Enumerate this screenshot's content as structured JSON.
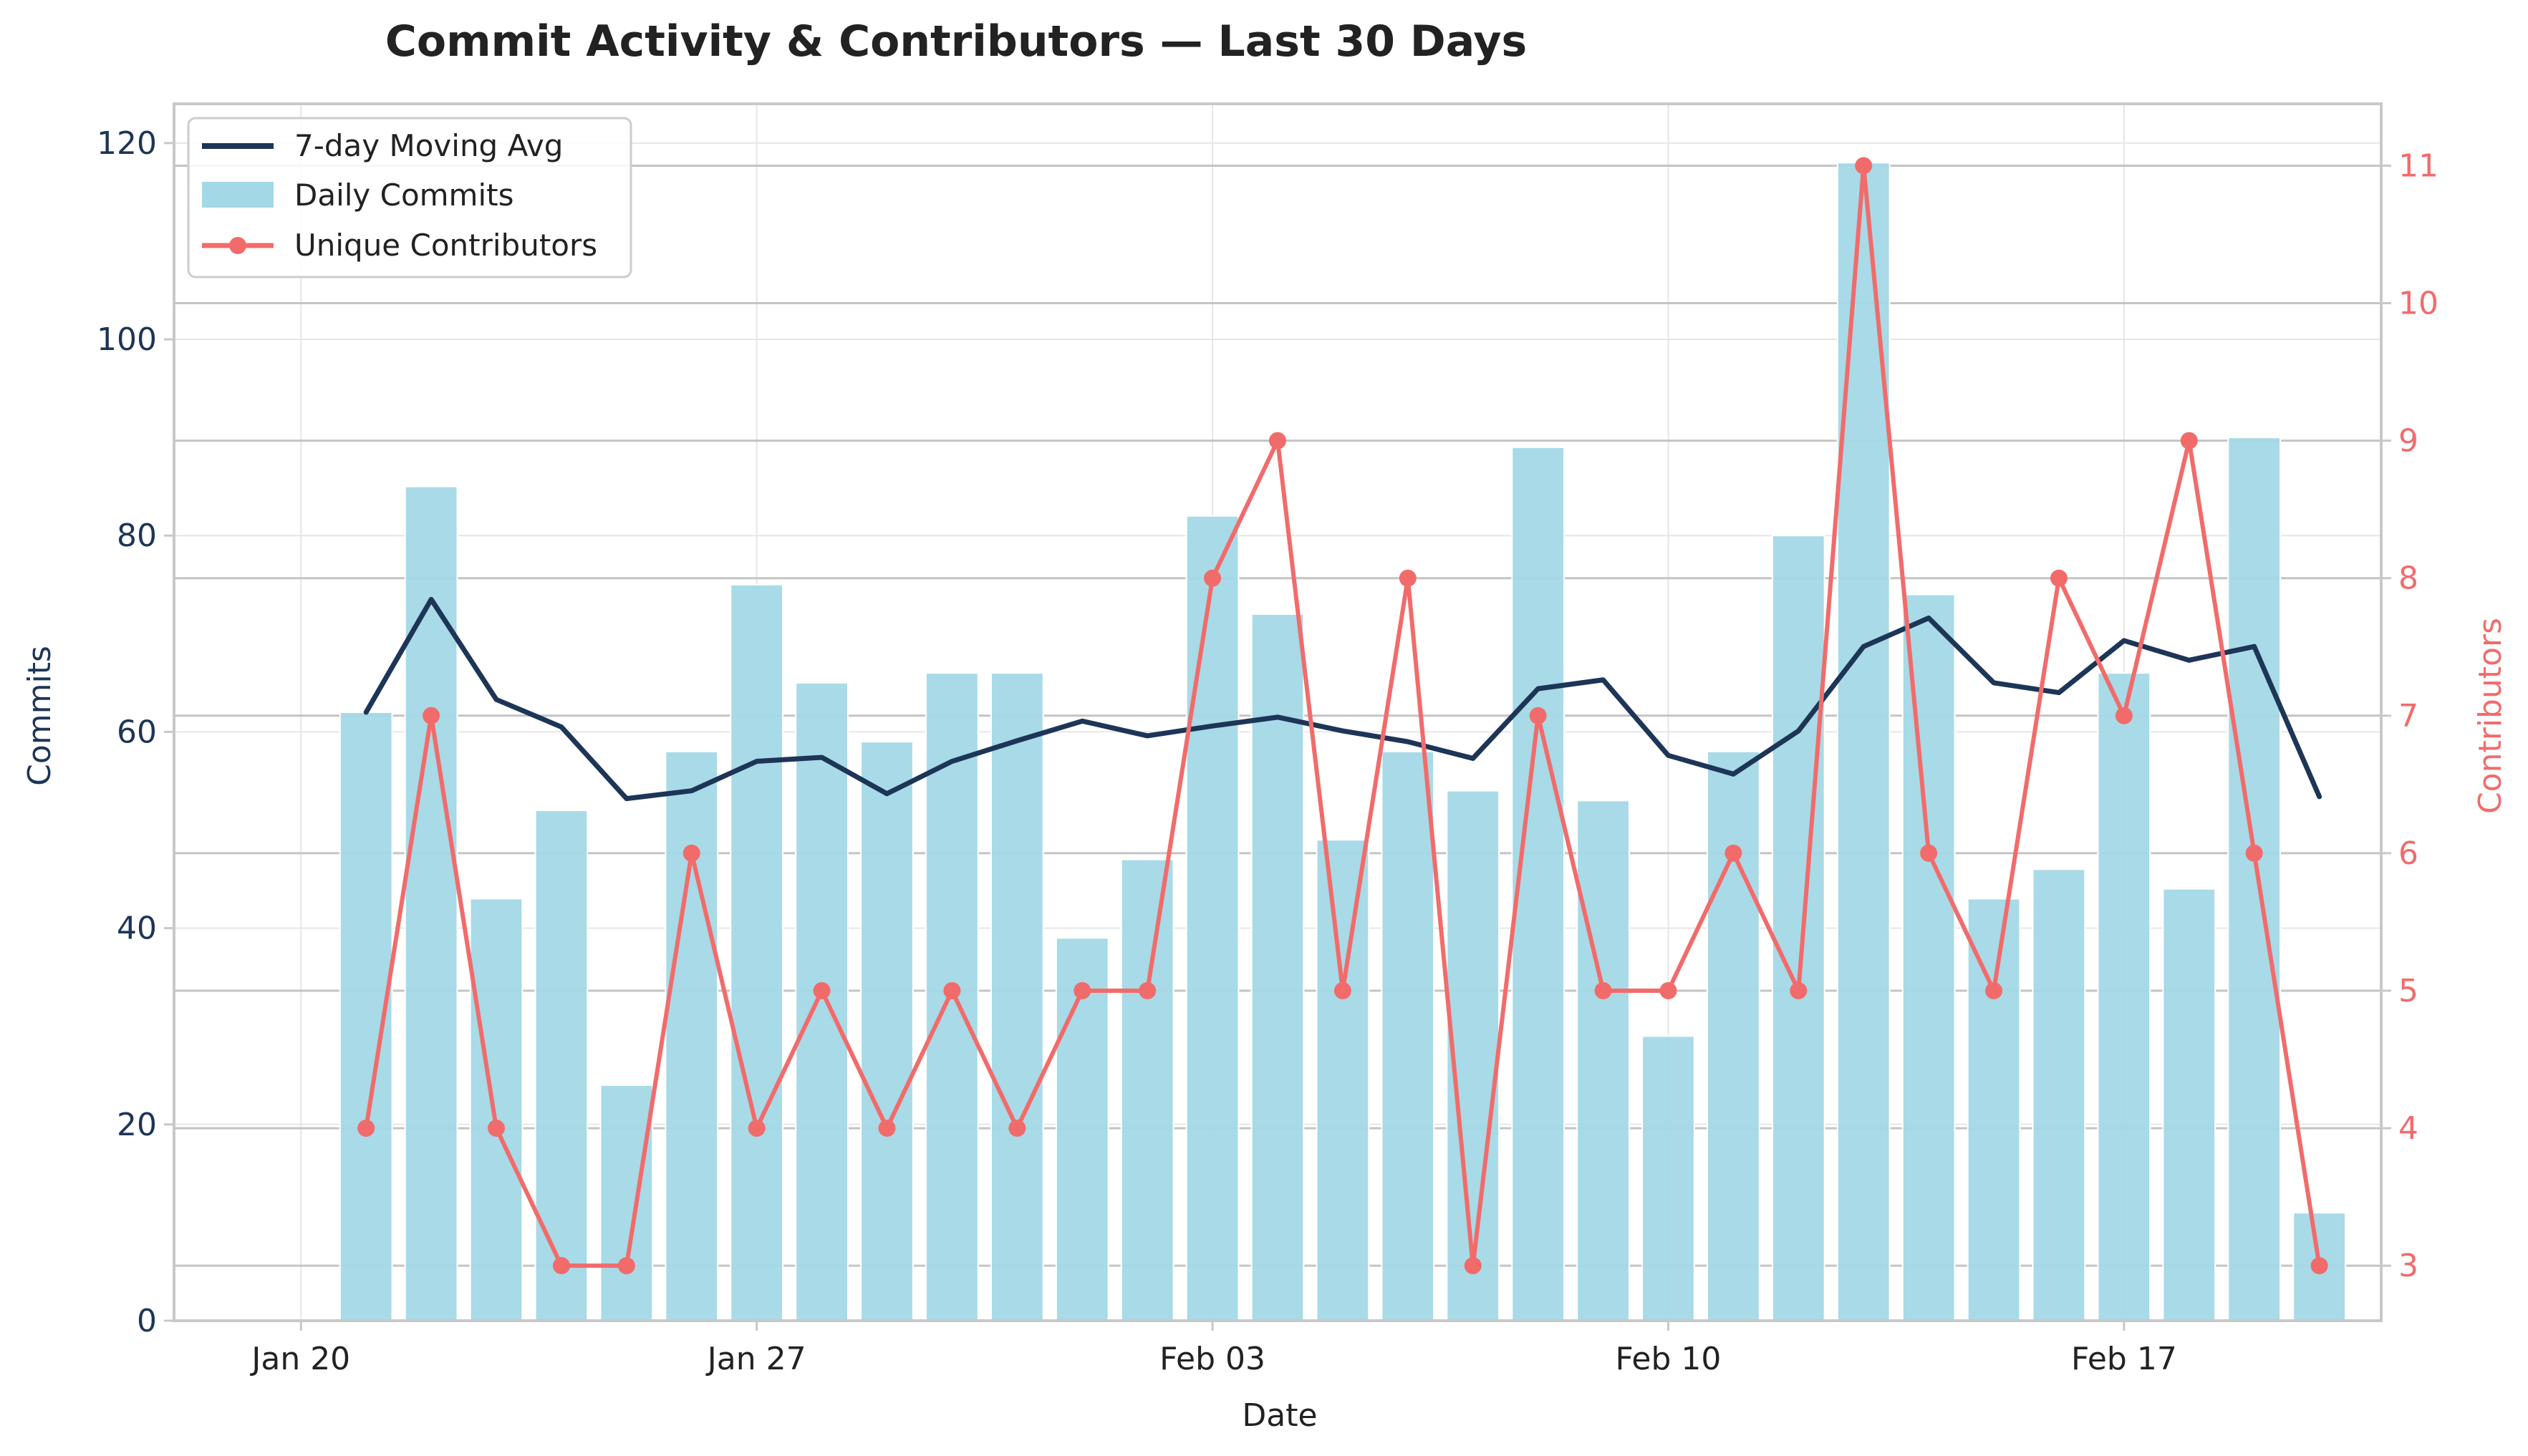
{
  "chart_data": {
    "type": "bar",
    "title": "Commit Activity & Contributors — Last 30 Days",
    "xlabel": "Date",
    "ylabel": "Commits",
    "y2label": "Contributors",
    "ylim": [
      0,
      124
    ],
    "y2lim": [
      2.6,
      11.45
    ],
    "yticks": [
      0,
      20,
      40,
      60,
      80,
      100,
      120
    ],
    "y2ticks": [
      3,
      4,
      5,
      6,
      7,
      8,
      9,
      10,
      11
    ],
    "x_day_range": [
      -1.95,
      31.95
    ],
    "xticks": [
      {
        "day": 0,
        "label": "Jan 20"
      },
      {
        "day": 7,
        "label": "Jan 27"
      },
      {
        "day": 14,
        "label": "Feb 03"
      },
      {
        "day": 21,
        "label": "Feb 10"
      },
      {
        "day": 28,
        "label": "Feb 17"
      }
    ],
    "days": [
      1,
      2,
      3,
      4,
      5,
      6,
      7,
      8,
      9,
      10,
      11,
      12,
      13,
      14,
      15,
      16,
      17,
      18,
      19,
      20,
      21,
      22,
      23,
      24,
      25,
      26,
      27,
      28,
      29,
      30,
      31
    ],
    "series": [
      {
        "name": "Daily Commits",
        "kind": "bar",
        "color": "#a3d8e6",
        "values": [
          62,
          85,
          43,
          52,
          24,
          58,
          75,
          65,
          59,
          66,
          66,
          39,
          47,
          82,
          72,
          49,
          58,
          54,
          89,
          53,
          29,
          58,
          80,
          118,
          74,
          43,
          46,
          66,
          44,
          90,
          11
        ]
      },
      {
        "name": "7-day Moving Avg",
        "kind": "line",
        "color": "#1d3557",
        "values": [
          62,
          73.5,
          63.3,
          60.5,
          53.2,
          54,
          57,
          57.4,
          53.7,
          57,
          59.1,
          61.1,
          59.6,
          60.6,
          61.5,
          60.1,
          59,
          57.3,
          64.4,
          65.3,
          57.6,
          55.7,
          60.1,
          68.7,
          71.6,
          65,
          64,
          69.3,
          67.3,
          68.7,
          53.4
        ]
      },
      {
        "name": "Unique Contributors",
        "kind": "line",
        "axis": "right",
        "color": "#f26b6b",
        "values": [
          4,
          7,
          4,
          3,
          3,
          6,
          4,
          5,
          4,
          5,
          4,
          5,
          5,
          8,
          9,
          5,
          8,
          3,
          7,
          5,
          5,
          6,
          5,
          11,
          6,
          5,
          8,
          7,
          9,
          6,
          3
        ]
      }
    ],
    "legend": [
      "7-day Moving Avg",
      "Daily Commits",
      "Unique Contributors"
    ],
    "legend_position": "top-left",
    "colors": {
      "axis_left": "#1d3557",
      "axis_right": "#f26b6b",
      "grid": "#e6e6e6",
      "spine": "#c8c8c8",
      "text": "#222222"
    }
  }
}
